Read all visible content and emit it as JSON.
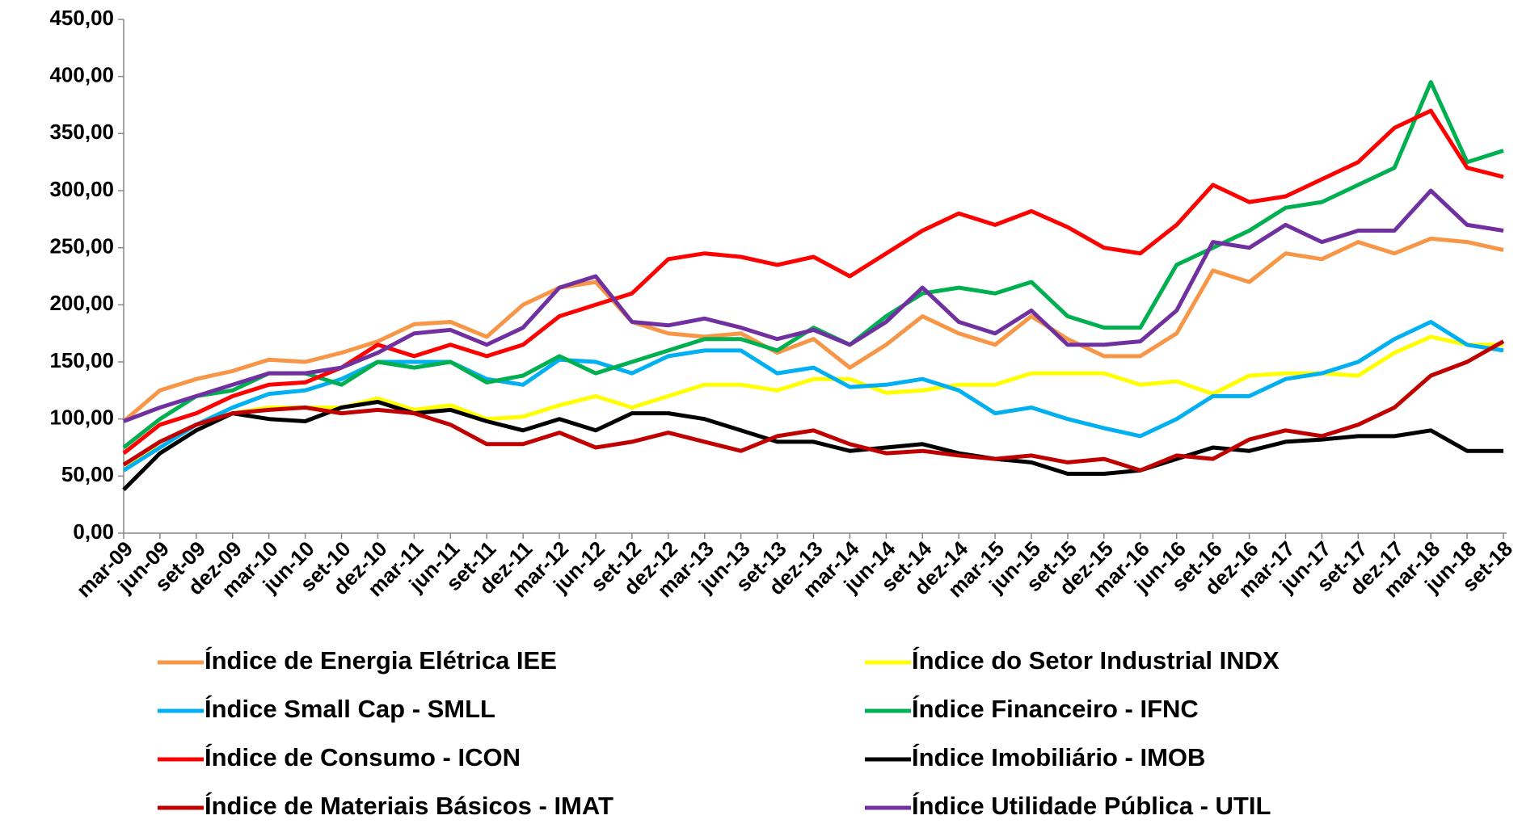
{
  "chart_data": {
    "type": "line",
    "categories": [
      "mar-09",
      "jun-09",
      "set-09",
      "dez-09",
      "mar-10",
      "jun-10",
      "set-10",
      "dez-10",
      "mar-11",
      "jun-11",
      "set-11",
      "dez-11",
      "mar-12",
      "jun-12",
      "set-12",
      "dez-12",
      "mar-13",
      "jun-13",
      "set-13",
      "dez-13",
      "mar-14",
      "jun-14",
      "set-14",
      "dez-14",
      "mar-15",
      "jun-15",
      "set-15",
      "dez-15",
      "mar-16",
      "jun-16",
      "set-16",
      "dez-16",
      "mar-17",
      "jun-17",
      "set-17",
      "dez-17",
      "mar-18",
      "jun-18",
      "set-18"
    ],
    "series": [
      {
        "name": "Índice de Energia Elétrica IEE",
        "color": "#f79646",
        "values": [
          98,
          125,
          135,
          142,
          152,
          150,
          158,
          168,
          183,
          185,
          172,
          200,
          215,
          220,
          185,
          175,
          172,
          175,
          158,
          170,
          145,
          165,
          190,
          175,
          165,
          190,
          170,
          155,
          155,
          175,
          230,
          220,
          245,
          240,
          255,
          245,
          258,
          255,
          248
        ]
      },
      {
        "name": "Índice do Setor Industrial INDX",
        "color": "#ffff00",
        "values": [
          55,
          80,
          95,
          105,
          110,
          110,
          110,
          118,
          108,
          112,
          100,
          102,
          112,
          120,
          110,
          120,
          130,
          130,
          125,
          135,
          135,
          123,
          125,
          130,
          130,
          140,
          140,
          140,
          130,
          133,
          122,
          138,
          140,
          140,
          138,
          158,
          172,
          165,
          165
        ]
      },
      {
        "name": "Índice Small Cap - SMLL",
        "color": "#00b0f0",
        "values": [
          55,
          75,
          95,
          110,
          122,
          125,
          135,
          150,
          150,
          150,
          135,
          130,
          152,
          150,
          140,
          155,
          160,
          160,
          140,
          145,
          128,
          130,
          135,
          125,
          105,
          110,
          100,
          92,
          85,
          100,
          120,
          120,
          135,
          140,
          150,
          170,
          185,
          165,
          160
        ]
      },
      {
        "name": "Índice Financeiro - IFNC",
        "color": "#00b050",
        "values": [
          75,
          100,
          120,
          125,
          140,
          140,
          130,
          150,
          145,
          150,
          132,
          138,
          155,
          140,
          150,
          160,
          170,
          170,
          160,
          180,
          165,
          190,
          210,
          215,
          210,
          220,
          190,
          180,
          180,
          235,
          250,
          265,
          285,
          290,
          305,
          320,
          395,
          325,
          335
        ]
      },
      {
        "name": "Índice de Consumo - ICON",
        "color": "#ff0000",
        "values": [
          70,
          95,
          105,
          120,
          130,
          132,
          145,
          165,
          155,
          165,
          155,
          165,
          190,
          200,
          210,
          240,
          245,
          242,
          235,
          242,
          225,
          245,
          265,
          280,
          270,
          282,
          268,
          250,
          245,
          270,
          305,
          290,
          295,
          310,
          325,
          355,
          370,
          320,
          312
        ]
      },
      {
        "name": "Índice Imobiliário - IMOB",
        "color": "#000000",
        "values": [
          38,
          70,
          90,
          105,
          100,
          98,
          110,
          115,
          105,
          108,
          98,
          90,
          100,
          90,
          105,
          105,
          100,
          90,
          80,
          80,
          72,
          75,
          78,
          70,
          65,
          62,
          52,
          52,
          55,
          65,
          75,
          72,
          80,
          82,
          85,
          85,
          90,
          72,
          72
        ]
      },
      {
        "name": "Índice de Materiais Básicos - IMAT",
        "color": "#c00000",
        "values": [
          60,
          80,
          95,
          105,
          108,
          110,
          105,
          108,
          105,
          95,
          78,
          78,
          88,
          75,
          80,
          88,
          80,
          72,
          85,
          90,
          78,
          70,
          72,
          68,
          65,
          68,
          62,
          65,
          55,
          68,
          65,
          82,
          90,
          85,
          95,
          110,
          138,
          150,
          168
        ]
      },
      {
        "name": "Índice Utilidade Pública - UTIL",
        "color": "#7030a0",
        "values": [
          98,
          110,
          120,
          130,
          140,
          140,
          145,
          158,
          175,
          178,
          165,
          180,
          215,
          225,
          185,
          182,
          188,
          180,
          170,
          178,
          165,
          185,
          215,
          185,
          175,
          195,
          165,
          165,
          168,
          195,
          255,
          250,
          270,
          255,
          265,
          265,
          300,
          270,
          265
        ]
      }
    ],
    "ylim": [
      0,
      450
    ],
    "yticks": [
      {
        "value": 0,
        "label": "0,00"
      },
      {
        "value": 50,
        "label": "50,00"
      },
      {
        "value": 100,
        "label": "100,00"
      },
      {
        "value": 150,
        "label": "150,00"
      },
      {
        "value": 200,
        "label": "200,00"
      },
      {
        "value": 250,
        "label": "250,00"
      },
      {
        "value": 300,
        "label": "300,00"
      },
      {
        "value": 350,
        "label": "350,00"
      },
      {
        "value": 400,
        "label": "400,00"
      },
      {
        "value": 450,
        "label": "450,00"
      }
    ],
    "grid": false
  }
}
